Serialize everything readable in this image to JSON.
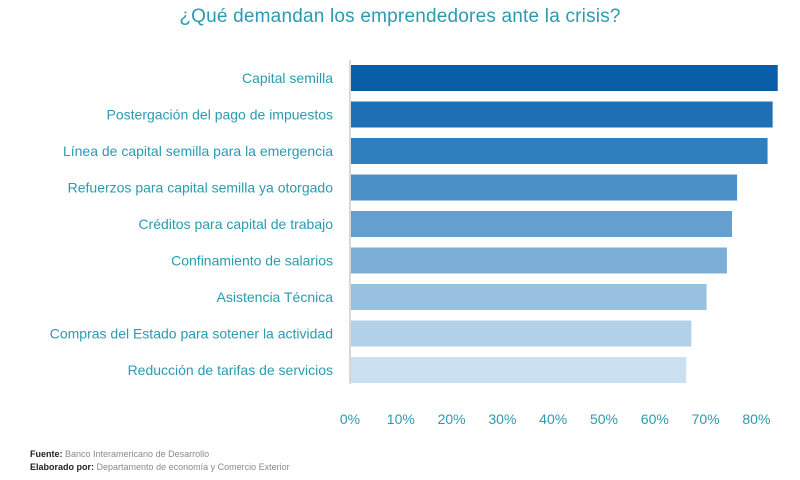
{
  "chart_data": {
    "type": "bar",
    "orientation": "horizontal",
    "title": "¿Qué demandan los emprendedores ante la crisis?",
    "categories": [
      "Capital semilla",
      "Postergación del pago de impuestos",
      "Línea de capital semilla para la emergencia",
      "Refuerzos para capital semilla ya otorgado",
      "Créditos para capital de trabajo",
      "Confinamiento de salarios",
      "Asistencia Técnica",
      "Compras del Estado para sotener la actividad",
      "Reducción de tarifas de servicios"
    ],
    "values": [
      84,
      83,
      82,
      76,
      75,
      74,
      70,
      67,
      66
    ],
    "xlim": [
      0,
      85
    ],
    "ticks": [
      0,
      10,
      20,
      30,
      40,
      50,
      60,
      70,
      80
    ],
    "tick_labels": [
      "0%",
      "10%",
      "20%",
      "30%",
      "40%",
      "50%",
      "60%",
      "70%",
      "80%"
    ],
    "bar_colors": [
      "#0a5ea8",
      "#1e6fb5",
      "#2f7ebd",
      "#4b91c8",
      "#659fcf",
      "#7dafd6",
      "#98c0df",
      "#b2d0e7",
      "#cadff0"
    ],
    "grid": false,
    "legend": "none"
  },
  "footer": {
    "source_label": "Fuente:",
    "source_value": "Banco Interamericano de Desarrollo",
    "made_by_label": "Elaborado por:",
    "made_by_value": "Departamento de economía y Comercio Exterior"
  }
}
